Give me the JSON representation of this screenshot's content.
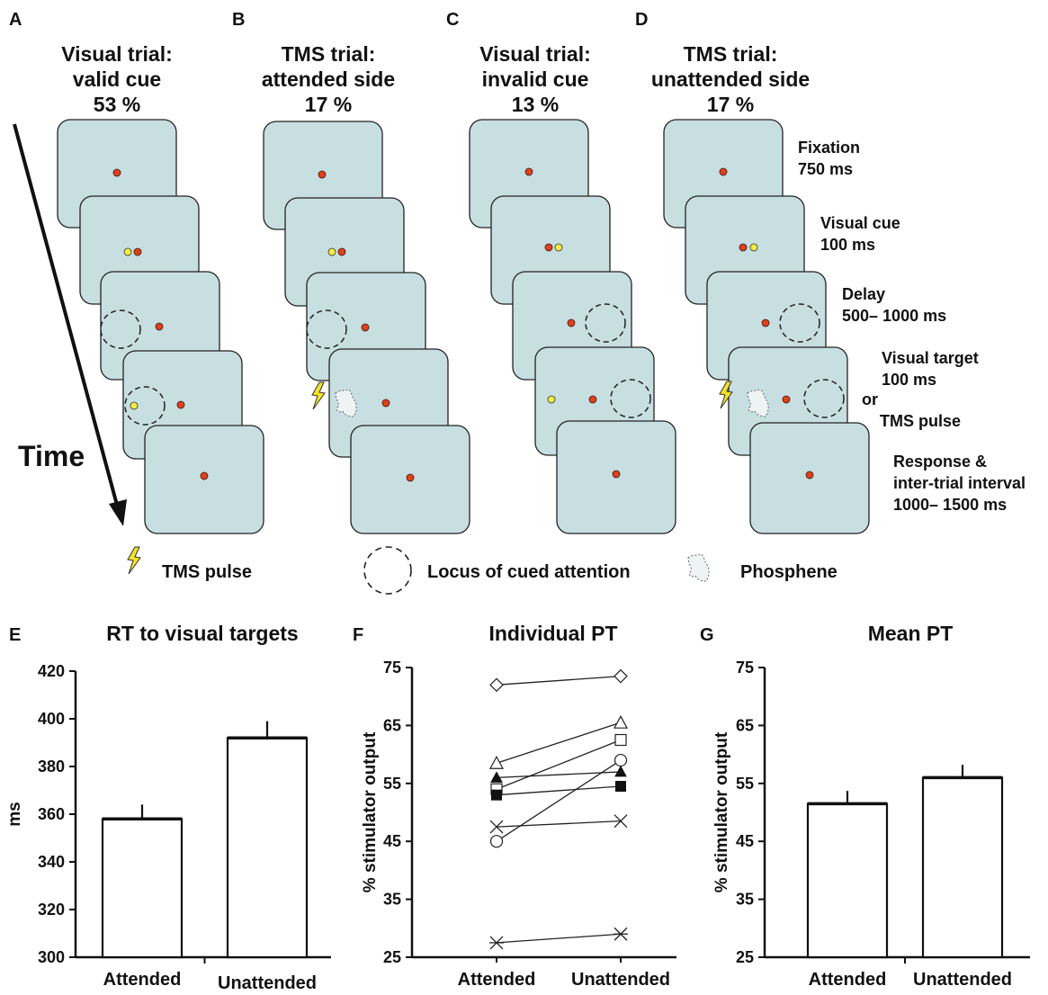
{
  "panels": {
    "A": {
      "letter": "A",
      "line1": "Visual trial:",
      "line2": "valid cue",
      "pct": "53 %"
    },
    "B": {
      "letter": "B",
      "line1": "TMS trial:",
      "line2": "attended side",
      "pct": "17 %"
    },
    "C": {
      "letter": "C",
      "line1": "Visual trial:",
      "line2": "invalid cue",
      "pct": "13 %"
    },
    "D": {
      "letter": "D",
      "line1": "TMS trial:",
      "line2": "unattended side",
      "pct": "17 %"
    }
  },
  "time_label": "Time",
  "steps": {
    "fixation": {
      "l1": "Fixation",
      "l2": "750 ms"
    },
    "cue": {
      "l1": "Visual cue",
      "l2": "100 ms"
    },
    "delay": {
      "l1": "Delay",
      "l2": "500– 1000 ms"
    },
    "target": {
      "l1": "Visual target",
      "l2": "100 ms",
      "or": "or",
      "l3": "TMS pulse"
    },
    "response": {
      "l1": "Response &",
      "l2": "inter-trial interval",
      "l3": "1000– 1500 ms"
    }
  },
  "legend": {
    "tms": "TMS pulse",
    "locus": "Locus of cued attention",
    "phosphene": "Phosphene"
  },
  "colors": {
    "screen": "#c8dfe2",
    "fixation_dot": "#e0401c",
    "cue_dot": "#f5ec43",
    "bolt": "#f3e22a"
  },
  "chart_data": [
    {
      "panel": "E",
      "type": "bar",
      "title": "RT to visual targets",
      "ylabel": "ms",
      "categories": [
        "Attended",
        "Unattended"
      ],
      "values": [
        358,
        392
      ],
      "errors": [
        6,
        7
      ],
      "ylim": [
        300,
        420
      ],
      "yticks": [
        300,
        320,
        340,
        360,
        380,
        400,
        420
      ]
    },
    {
      "panel": "F",
      "type": "line",
      "title": "Individual PT",
      "ylabel": "% stimulator output",
      "categories": [
        "Attended",
        "Unattended"
      ],
      "ylim": [
        25,
        75
      ],
      "yticks": [
        25,
        35,
        45,
        55,
        65,
        75
      ],
      "series": [
        {
          "marker": "diamond",
          "values": [
            72,
            73.5
          ]
        },
        {
          "marker": "triangle-open",
          "values": [
            58.5,
            65.5
          ]
        },
        {
          "marker": "square-open",
          "values": [
            54,
            62.5
          ]
        },
        {
          "marker": "circle-open",
          "values": [
            45,
            59
          ]
        },
        {
          "marker": "triangle-filled",
          "values": [
            56,
            57
          ]
        },
        {
          "marker": "square-filled",
          "values": [
            53,
            54.5
          ]
        },
        {
          "marker": "x",
          "values": [
            47.5,
            48.5
          ]
        },
        {
          "marker": "asterisk",
          "values": [
            27.5,
            29
          ]
        }
      ]
    },
    {
      "panel": "G",
      "type": "bar",
      "title": "Mean PT",
      "ylabel": "% stimulator output",
      "categories": [
        "Attended",
        "Unattended"
      ],
      "values": [
        51.5,
        56
      ],
      "errors": [
        2.2,
        2.2
      ],
      "ylim": [
        25,
        75
      ],
      "yticks": [
        25,
        35,
        45,
        55,
        65,
        75
      ]
    }
  ]
}
